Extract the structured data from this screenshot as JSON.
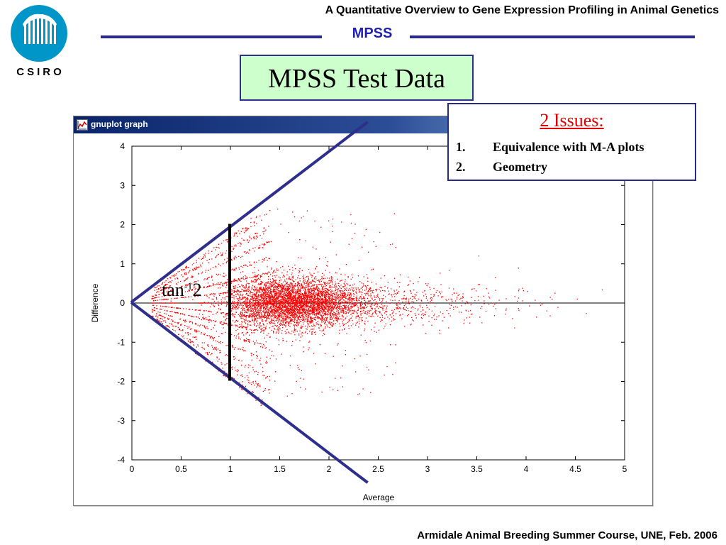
{
  "header": {
    "title": "A Quantitative Overview to Gene Expression Profiling in Animal Genetics",
    "section": "MPSS",
    "rule_color": "#2a2a8c",
    "section_color": "#1f1fb0"
  },
  "logo": {
    "text": "CSIRO",
    "color": "#0096c8"
  },
  "slide_title": "MPSS Test Data",
  "window": {
    "title": "gnuplot graph",
    "icon": "gnuplot-icon"
  },
  "chart_data": {
    "type": "scatter",
    "title": "",
    "xlabel": "Average",
    "ylabel": "Difference",
    "xlim": [
      0,
      5
    ],
    "ylim": [
      -4,
      4
    ],
    "xticks": [
      "0",
      "0.5",
      "1",
      "1.5",
      "2",
      "2.5",
      "3",
      "3.5",
      "4",
      "4.5",
      "5"
    ],
    "yticks": [
      "4",
      "3",
      "2",
      "1",
      "0",
      "-1",
      "-2",
      "-3",
      "-4"
    ],
    "grid": false,
    "zero_line": true,
    "point_color": "#ff0000",
    "description": "Dense cloud of several thousand small red points centred near Average 1.4-1.9 and Difference 0, fanning out in a wedge bounded by lines |Difference| = 2 x Average; sparse points extend to Average about 4.8.",
    "point_cloud": {
      "wedge_slope": 2,
      "dense_center_x": 1.6,
      "x_range": [
        0.15,
        4.8
      ],
      "y_range": [
        -2.6,
        2.9
      ]
    },
    "annotations": {
      "wedge_lines": [
        {
          "from": [
            0,
            0
          ],
          "to": [
            2.4,
            4.6
          ]
        },
        {
          "from": [
            0,
            0
          ],
          "to": [
            2.4,
            -4.6
          ]
        }
      ],
      "vertical_segment": {
        "x": 1,
        "y_from": -2,
        "y_to": 2
      },
      "label": "tan",
      "label_sup": "-1",
      "label_tail": "2",
      "line_color": "#2e2e8c"
    }
  },
  "issues": {
    "heading": "2 Issues:",
    "items": [
      {
        "num": "1.",
        "text": "Equivalence with M-A plots"
      },
      {
        "num": "2.",
        "text": "Geometry"
      }
    ]
  },
  "footer": "Armidale Animal Breeding Summer Course, UNE, Feb. 2006"
}
